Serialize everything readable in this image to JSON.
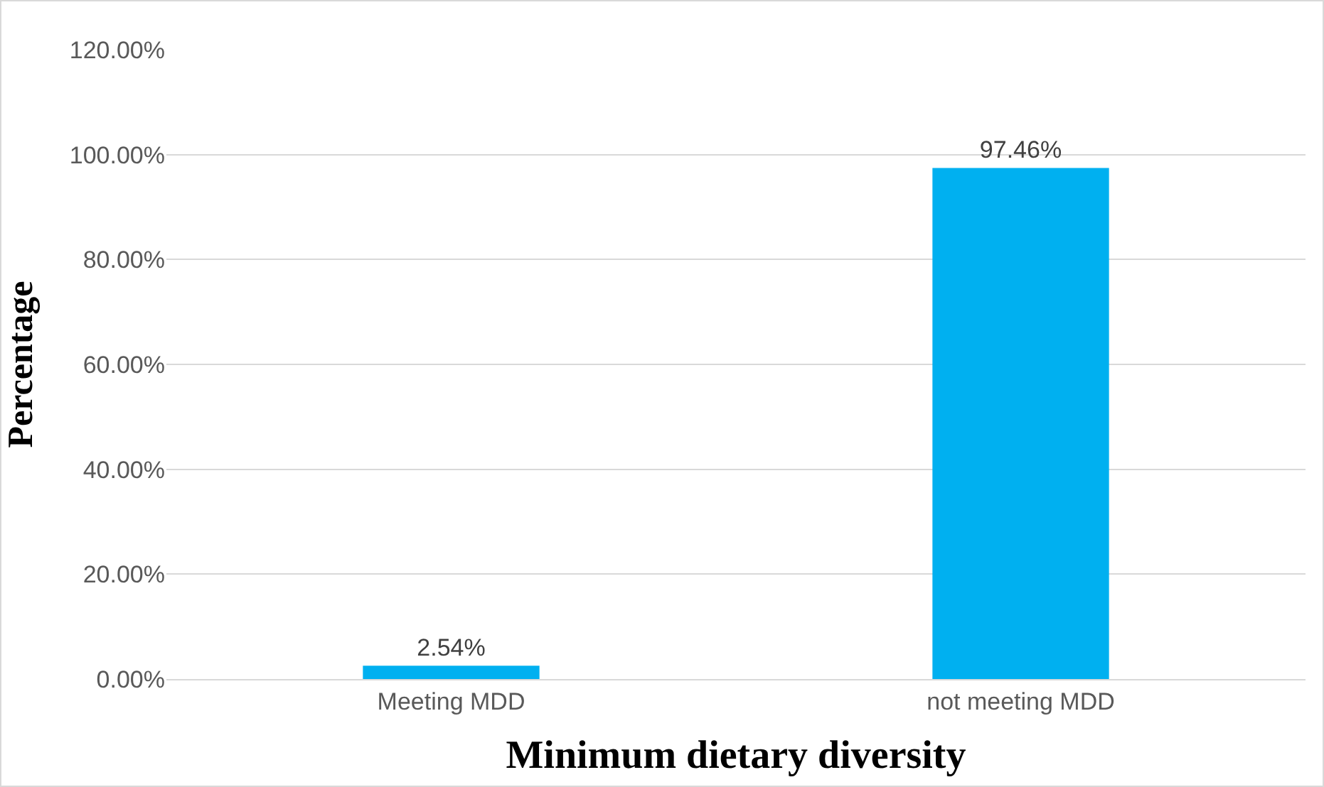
{
  "chart_data": {
    "type": "bar",
    "xlabel": "Minimum dietary diversity",
    "ylabel": "Percentage",
    "categories": [
      "Meeting MDD",
      "not meeting MDD"
    ],
    "values": [
      2.54,
      97.46
    ],
    "value_labels": [
      "2.54%",
      "97.46%"
    ],
    "color": "#00b0f0",
    "ylim": [
      0,
      120
    ],
    "yticks": [
      {
        "value": 0,
        "label": "0.00%"
      },
      {
        "value": 20,
        "label": "20.00%"
      },
      {
        "value": 40,
        "label": "40.00%"
      },
      {
        "value": 60,
        "label": "60.00%"
      },
      {
        "value": 80,
        "label": "80.00%"
      },
      {
        "value": 100,
        "label": "100.00%"
      },
      {
        "value": 120,
        "label": "120.00%"
      }
    ],
    "grid": "y"
  }
}
